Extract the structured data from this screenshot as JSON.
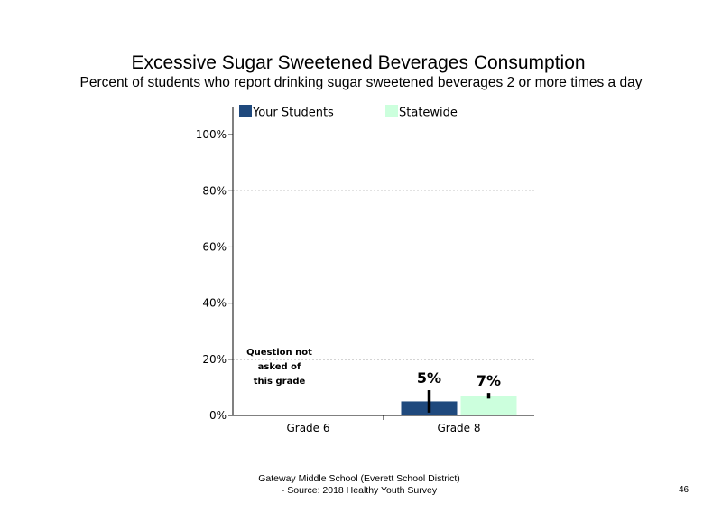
{
  "chart_data": {
    "type": "bar",
    "title": "Excessive Sugar Sweetened Beverages Consumption",
    "subtitle": "Percent of students  who report drinking sugar sweetened  beverages 2 or more times a day",
    "categories": [
      "Grade 6",
      "Grade 8"
    ],
    "series": [
      {
        "name": "Your Students",
        "color": "#1f497d",
        "values": [
          null,
          5
        ],
        "labels": [
          "",
          "5%"
        ],
        "error": [
          null,
          [
            1,
            9
          ]
        ]
      },
      {
        "name": "Statewide",
        "color": "#ccffdd",
        "values": [
          null,
          7
        ],
        "labels": [
          "",
          "7%"
        ],
        "error": [
          null,
          [
            6,
            8
          ]
        ]
      }
    ],
    "ylim": [
      0,
      110
    ],
    "yticks": [
      0,
      20,
      40,
      60,
      80,
      100
    ],
    "ytick_labels": [
      "0%",
      "20%",
      "40%",
      "60%",
      "80%",
      "100%"
    ],
    "gridlines": [
      20,
      80
    ],
    "legend": "top",
    "annotation": {
      "category": "Grade 6",
      "lines": [
        "Question not",
        "asked of",
        "this grade"
      ]
    }
  },
  "footer": {
    "line1": "Gateway Middle  School  (Everett School District)",
    "line2": "- Source: 2018 Healthy  Youth Survey"
  },
  "page_number": "46"
}
